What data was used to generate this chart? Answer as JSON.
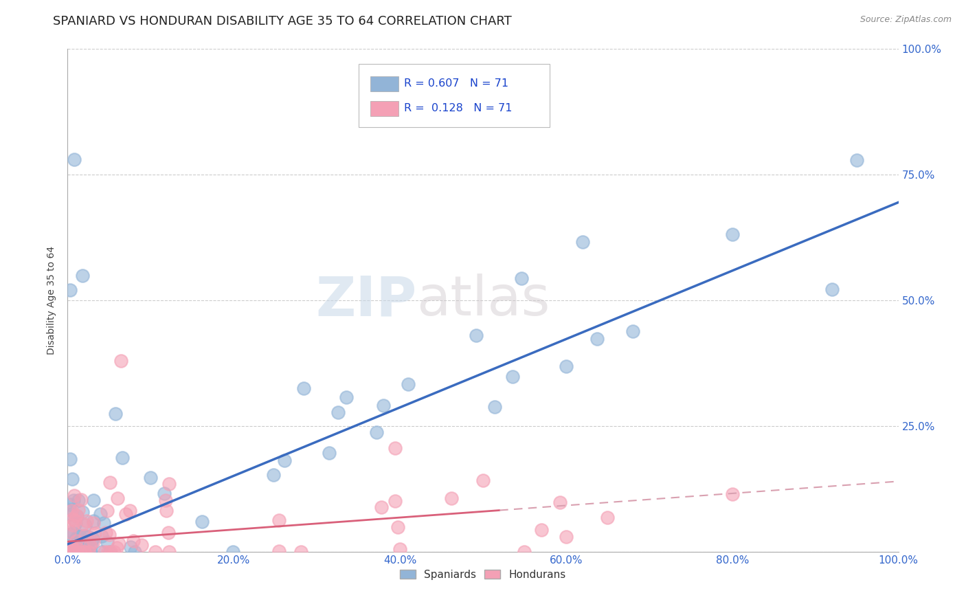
{
  "title": "SPANIARD VS HONDURAN DISABILITY AGE 35 TO 64 CORRELATION CHART",
  "source_text": "Source: ZipAtlas.com",
  "ylabel": "Disability Age 35 to 64",
  "watermark_zip": "ZIP",
  "watermark_atlas": "atlas",
  "blue_R": 0.607,
  "blue_N": 71,
  "pink_R": 0.128,
  "pink_N": 71,
  "blue_color": "#92b4d7",
  "pink_color": "#f4a0b5",
  "blue_line_color": "#3a6bbf",
  "pink_line_color": "#d9607a",
  "pink_dash_color": "#d9a0b0",
  "xlim": [
    0.0,
    100.0
  ],
  "ylim": [
    0.0,
    100.0
  ],
  "x_ticks": [
    0.0,
    20.0,
    40.0,
    60.0,
    80.0,
    100.0
  ],
  "x_tick_labels": [
    "0.0%",
    "20.0%",
    "40.0%",
    "60.0%",
    "80.0%",
    "100.0%"
  ],
  "y_ticks": [
    0.0,
    25.0,
    50.0,
    75.0,
    100.0
  ],
  "y_tick_labels_right": [
    "",
    "25.0%",
    "50.0%",
    "75.0%",
    "100.0%"
  ],
  "grid_color": "#cccccc",
  "background_color": "#ffffff",
  "title_fontsize": 13,
  "axis_label_fontsize": 10,
  "tick_label_fontsize": 11,
  "blue_line_slope": 0.68,
  "blue_line_intercept": 1.5,
  "pink_line_slope": 0.12,
  "pink_line_intercept": 2.0,
  "pink_solid_end_x": 52.0
}
